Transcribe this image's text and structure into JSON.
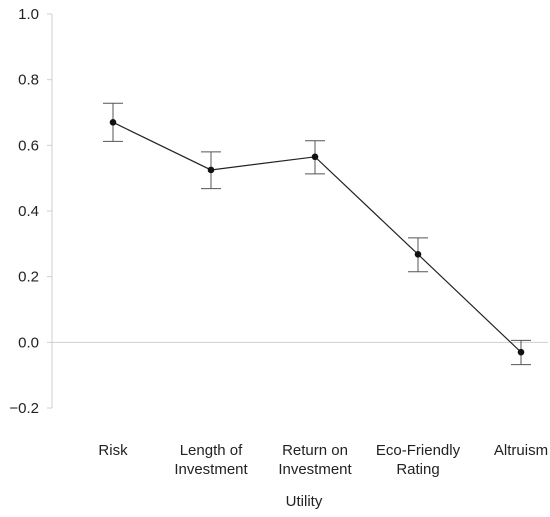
{
  "chart_data": {
    "type": "line",
    "title": "",
    "xlabel": "Utility",
    "ylabel": "",
    "categories": [
      [
        "Risk"
      ],
      [
        "Length of",
        "Investment"
      ],
      [
        "Return on",
        "Investment"
      ],
      [
        "Eco-Friendly",
        "Rating"
      ],
      [
        "Altruism"
      ]
    ],
    "values": [
      0.67,
      0.525,
      0.565,
      0.268,
      -0.03
    ],
    "error_low": [
      0.612,
      0.468,
      0.513,
      0.215,
      -0.068
    ],
    "error_high": [
      0.728,
      0.58,
      0.614,
      0.318,
      0.006
    ],
    "ylim": [
      -0.2,
      1.0
    ],
    "yticks": [
      -0.2,
      0.0,
      0.2,
      0.4,
      0.6,
      0.8,
      1.0
    ],
    "ytick_labels": [
      "−0.2",
      "0.0",
      "0.2",
      "0.4",
      "0.6",
      "0.8",
      "1.0"
    ],
    "zero_line": true,
    "grid": false,
    "legend": "none",
    "colors": {
      "line": "#222222",
      "marker": "#111111",
      "errorbar": "#555555",
      "axis": "#cfcfcf"
    }
  }
}
